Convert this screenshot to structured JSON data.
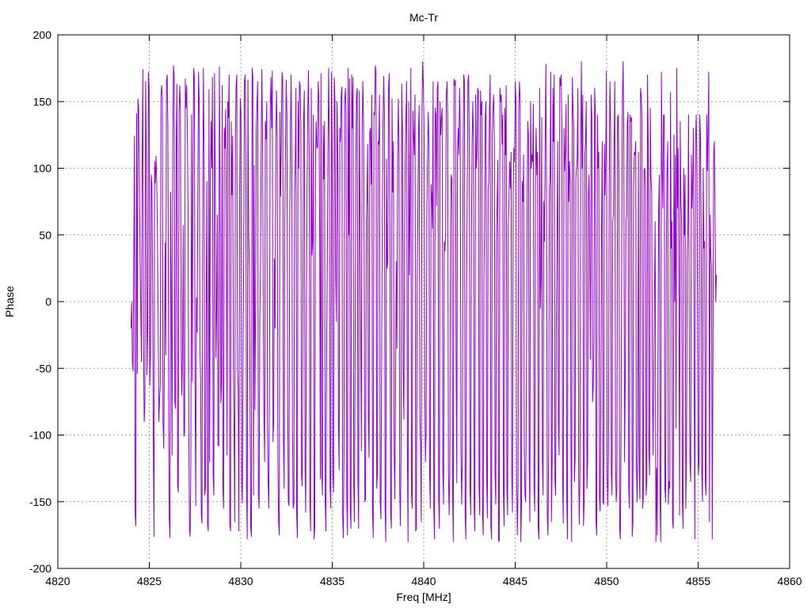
{
  "chart_data": {
    "type": "line",
    "title": "Mc-Tr",
    "xlabel": "Freq [MHz]",
    "ylabel": "Phase",
    "xlim": [
      4820,
      4860
    ],
    "ylim": [
      -200,
      200
    ],
    "xticks": [
      4820,
      4825,
      4830,
      4835,
      4840,
      4845,
      4850,
      4855,
      4860
    ],
    "yticks": [
      -200,
      -150,
      -100,
      -50,
      0,
      50,
      100,
      150,
      200
    ],
    "grid": true,
    "legend": "none",
    "series": [
      {
        "color": "#9400d3",
        "x_start": 4824.0,
        "x_end": 4856.0,
        "x_step": 0.05,
        "values": [
          -20,
          0,
          -45,
          -52,
          35,
          124,
          -160,
          -168,
          141,
          -54,
          152,
          145,
          89,
          33,
          -5,
          -45,
          101,
          174,
          -35,
          -90,
          -77,
          165,
          110,
          -55,
          -20,
          172,
          160,
          -63,
          -40,
          95,
          88,
          20,
          -101,
          -176,
          105,
          89,
          109,
          90,
          50,
          -10,
          -90,
          -73,
          -63,
          152,
          162,
          155,
          -90,
          -110,
          -43,
          44,
          -40,
          165,
          170,
          130,
          -65,
          -164,
          -177,
          82,
          -2,
          -115,
          115,
          177,
          168,
          -75,
          -80,
          120,
          163,
          -137,
          -143,
          142,
          162,
          143,
          -30,
          -70,
          -40,
          57,
          -101,
          -98,
          167,
          145,
          162,
          128,
          65,
          -95,
          -170,
          -176,
          -120,
          140,
          -60,
          100,
          175,
          169,
          -55,
          -153,
          3,
          -23,
          80,
          172,
          150,
          -35,
          -60,
          -160,
          -166,
          50,
          175,
          111,
          -145,
          -140,
          -5,
          90,
          -167,
          -172,
          159,
          -120,
          85,
          135,
          100,
          168,
          -130,
          -145,
          171,
          100,
          -42,
          -7,
          65,
          -108,
          -108,
          176,
          88,
          -76,
          -62,
          162,
          -140,
          -155,
          130,
          115,
          144,
          60,
          -115,
          150,
          138,
          170,
          -167,
          -172,
          135,
          80,
          124,
          -50,
          -90,
          -165,
          120,
          162,
          170,
          -50,
          -65,
          -172,
          75,
          152,
          143,
          -135,
          -151,
          -35,
          42,
          165,
          170,
          105,
          -140,
          -178,
          166,
          52,
          25,
          -70,
          -170,
          -176,
          175,
          169,
          -145,
          102,
          -81,
          -2,
          130,
          148,
          165,
          -145,
          -155,
          -17,
          28,
          110,
          174,
          121,
          -12,
          -85,
          -120,
          135,
          122,
          150,
          -90,
          -134,
          -155,
          -45,
          144,
          168,
          130,
          173,
          -105,
          -90,
          32,
          -20,
          120,
          158,
          125,
          -115,
          -165,
          -175,
          142,
          79,
          119,
          172,
          167,
          -105,
          -140,
          60,
          120,
          166,
          140,
          -60,
          -150,
          -153,
          55,
          125,
          170,
          111,
          -95,
          -155,
          -152,
          82,
          106,
          160,
          -160,
          -177,
          150,
          100,
          165,
          162,
          130,
          -130,
          -138,
          15,
          138,
          158,
          -120,
          -158,
          -10,
          85,
          145,
          173,
          110,
          -150,
          -172,
          160,
          35,
          45,
          140,
          -178,
          -170,
          102,
          135,
          116,
          115,
          165,
          151,
          52,
          -133,
          171,
          -128,
          -145,
          132,
          92,
          135,
          -150,
          -172,
          -40,
          28,
          115,
          175,
          109,
          -140,
          -155,
          172,
          110,
          -130,
          -143,
          168,
          151,
          20,
          -15,
          150,
          110,
          -90,
          -126,
          130,
          120,
          155,
          161,
          -160,
          -177,
          -110,
          150,
          160,
          142,
          -150,
          -175,
          175,
          50,
          167,
          -155,
          -170,
          170,
          130,
          168,
          -140,
          -165,
          -30,
          100,
          155,
          160,
          -132,
          -170,
          158,
          63,
          -20,
          -112,
          125,
          165,
          138,
          40,
          -150,
          -148,
          60,
          78,
          118,
          -88,
          -117,
          127,
          130,
          88,
          155,
          -160,
          -177,
          142,
          140,
          177,
          172,
          -140,
          -130,
          120,
          118,
          155,
          -150,
          -163,
          -50,
          65,
          130,
          169,
          142,
          -155,
          -180,
          107,
          25,
          30,
          160,
          171,
          45,
          -159,
          -170,
          152,
          82,
          120,
          -110,
          -148,
          -70,
          30,
          -35,
          101,
          152,
          120,
          -140,
          -168,
          -103,
          163,
          130,
          -50,
          -88,
          50,
          110,
          140,
          165,
          -112,
          -180,
          150,
          20,
          80,
          175,
          -145,
          -155,
          143,
          125,
          110,
          155,
          -172,
          -170,
          10,
          60,
          130,
          147,
          -85,
          -106,
          -165,
          143,
          180,
          162,
          130,
          -60,
          -120,
          -95,
          70,
          105,
          142,
          120,
          -130,
          -155,
          88,
          80,
          55,
          165,
          -155,
          -178,
          145,
          140,
          72,
          160,
          165,
          -148,
          -170,
          150,
          125,
          138,
          145,
          -125,
          -152,
          45,
          38,
          52,
          155,
          165,
          138,
          -125,
          -160,
          -128,
          60,
          95,
          92,
          -145,
          -180,
          167,
          162,
          166,
          -35,
          -136,
          112,
          130,
          110,
          160,
          130,
          -110,
          -152,
          -115,
          110,
          170,
          165,
          -160,
          -178,
          -5,
          75,
          165,
          170,
          125,
          -140,
          -160,
          45,
          118,
          150,
          120,
          -155,
          -172,
          155,
          100,
          110,
          160,
          158,
          -140,
          -160,
          158,
          140,
          150,
          -160,
          -175,
          15,
          62,
          140,
          150,
          -135,
          -162,
          85,
          90,
          145,
          170,
          -168,
          -178,
          124,
          145,
          155,
          118,
          -130,
          -152,
          40,
          75,
          106,
          -180,
          -179,
          160,
          150,
          155,
          118,
          140,
          -145,
          -168,
          145,
          110,
          162,
          -140,
          -160,
          55,
          78,
          105,
          85,
          112,
          -130,
          -158,
          80,
          115,
          105,
          165,
          152,
          -135,
          -175,
          -140,
          142,
          165,
          151,
          -180,
          -155,
          90,
          75,
          110,
          -110,
          -145,
          -150,
          -60,
          65,
          135,
          125,
          -120,
          -165,
          150,
          100,
          110,
          105,
          148,
          -140,
          -157,
          92,
          130,
          95,
          112,
          -170,
          -178,
          160,
          -5,
          15,
          138,
          -118,
          -145,
          75,
          45,
          118,
          178,
          70,
          -160,
          -175,
          -110,
          85,
          92,
          172,
          -165,
          -120,
          160,
          120,
          170,
          -134,
          -145,
          -20,
          50,
          120,
          -90,
          -115,
          168,
          162,
          170,
          130,
          -135,
          -166,
          130,
          98,
          115,
          148,
          -148,
          -178,
          155,
          75,
          105,
          90,
          -110,
          -180,
          168,
          145,
          130,
          -135,
          -118,
          92,
          100,
          108,
          160,
          -125,
          -167,
          -125,
          105,
          180,
          100,
          155,
          -168,
          -150,
          110,
          120,
          150,
          -140,
          -120,
          80,
          95,
          30,
          -43,
          155,
          140,
          -75,
          -65,
          -30,
          160,
          142,
          -165,
          -175,
          140,
          100,
          112,
          -148,
          -157,
          -60,
          60,
          120,
          -150,
          -152,
          118,
          80,
          110,
          173,
          -130,
          -153,
          -112,
          90,
          165,
          135,
          -128,
          -145,
          60,
          65,
          120,
          165,
          -118,
          -150,
          -140,
          138,
          140,
          85,
          -170,
          -178,
          -100,
          55,
          155,
          180,
          112,
          -120,
          -55,
          60,
          65,
          135,
          142,
          -140,
          -155,
          140,
          135,
          138,
          -176,
          -165,
          85,
          112,
          110,
          120,
          -120,
          -150,
          -105,
          112,
          -125,
          -148,
          160,
          155,
          137,
          -155,
          -146,
          98,
          100,
          85,
          -145,
          -135,
          170,
          118,
          -112,
          -130,
          145,
          93,
          82,
          -60,
          -115,
          -55,
          12,
          60,
          -180,
          -125,
          -175,
          -40,
          70,
          95,
          -150,
          -180,
          172,
          100,
          70,
          140,
          140,
          -140,
          -150,
          30,
          100,
          120,
          -152,
          -135,
          -140,
          157,
          40,
          60,
          -165,
          -170,
          125,
          0,
          110,
          -95,
          175,
          70,
          115,
          12,
          -160,
          135,
          75,
          60,
          -150,
          -170,
          100,
          50,
          95,
          -155,
          -120,
          30,
          55,
          140,
          -35,
          -120,
          -135,
          110,
          70,
          90,
          130,
          -50,
          -178,
          120,
          140,
          100,
          -30,
          -130,
          -120,
          140,
          125,
          60,
          -130,
          -150,
          100,
          40,
          45,
          -135,
          -145,
          140,
          98,
          130,
          172,
          -165,
          65,
          35,
          25,
          -178,
          -40,
          110,
          120,
          65,
          0,
          20
        ]
      }
    ]
  }
}
